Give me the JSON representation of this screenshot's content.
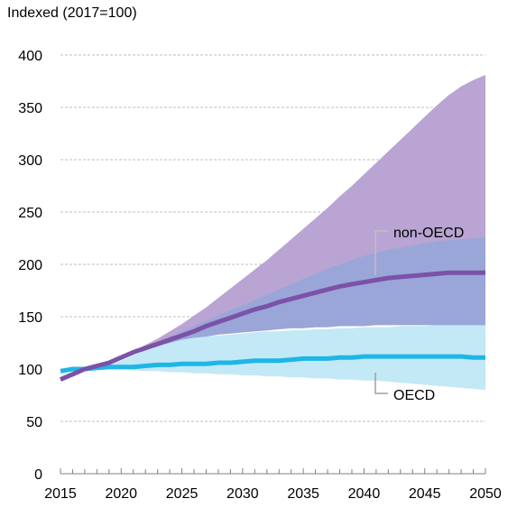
{
  "chart_data": {
    "type": "area",
    "title": "",
    "ylabel": "Indexed (2017=100)",
    "xlabel": "",
    "xlim": [
      2015,
      2050
    ],
    "ylim": [
      0,
      400
    ],
    "x_ticks": [
      "2015",
      "2020",
      "2025",
      "2030",
      "2035",
      "2040",
      "2045",
      "2050"
    ],
    "y_ticks": [
      "0",
      "50",
      "100",
      "150",
      "200",
      "250",
      "300",
      "350",
      "400"
    ],
    "grid": "horizontal-dashed",
    "colors": {
      "oecd_band": "#c3e8f6",
      "nonoecd_band": "#b9a4d3",
      "overlap": "#9aa6d8",
      "oecd_line": "#1eb6e6",
      "nonoecd_line": "#7b52a8",
      "grid": "#bfbfbf",
      "axis": "#808080"
    },
    "series": [
      {
        "name": "OECD",
        "x": [
          2015,
          2016,
          2017,
          2018,
          2019,
          2020,
          2021,
          2022,
          2023,
          2024,
          2025,
          2026,
          2027,
          2028,
          2029,
          2030,
          2031,
          2032,
          2033,
          2034,
          2035,
          2036,
          2037,
          2038,
          2039,
          2040,
          2041,
          2042,
          2043,
          2044,
          2045,
          2046,
          2047,
          2048,
          2049,
          2050
        ],
        "values": [
          98,
          100,
          100,
          101,
          102,
          102,
          102,
          103,
          104,
          104,
          105,
          105,
          105,
          106,
          106,
          107,
          108,
          108,
          108,
          109,
          110,
          110,
          110,
          111,
          111,
          112,
          112,
          112,
          112,
          112,
          112,
          112,
          112,
          112,
          111,
          111
        ],
        "band_upper": [
          98,
          100,
          100,
          102,
          104,
          108,
          113,
          118,
          122,
          125,
          128,
          130,
          131,
          132,
          133,
          134,
          135,
          136,
          136,
          137,
          137,
          138,
          138,
          139,
          139,
          140,
          140,
          140,
          141,
          141,
          141,
          142,
          142,
          142,
          142,
          142
        ],
        "band_lower": [
          98,
          100,
          100,
          100,
          100,
          100,
          99,
          98,
          98,
          97,
          97,
          96,
          96,
          95,
          95,
          94,
          94,
          93,
          93,
          92,
          92,
          91,
          91,
          90,
          90,
          89,
          89,
          88,
          87,
          86,
          85,
          84,
          83,
          82,
          81,
          80
        ]
      },
      {
        "name": "non-OECD",
        "x": [
          2015,
          2016,
          2017,
          2018,
          2019,
          2020,
          2021,
          2022,
          2023,
          2024,
          2025,
          2026,
          2027,
          2028,
          2029,
          2030,
          2031,
          2032,
          2033,
          2034,
          2035,
          2036,
          2037,
          2038,
          2039,
          2040,
          2041,
          2042,
          2043,
          2044,
          2045,
          2046,
          2047,
          2048,
          2049,
          2050
        ],
        "values": [
          90,
          95,
          100,
          103,
          106,
          111,
          116,
          120,
          124,
          128,
          132,
          136,
          141,
          145,
          149,
          153,
          157,
          160,
          164,
          167,
          170,
          173,
          176,
          179,
          181,
          183,
          185,
          187,
          188,
          189,
          190,
          191,
          192,
          192,
          192,
          192
        ],
        "band_upper": [
          90,
          95,
          100,
          103,
          106,
          111,
          117,
          123,
          129,
          136,
          143,
          151,
          159,
          168,
          177,
          186,
          195,
          204,
          214,
          224,
          234,
          244,
          254,
          265,
          275,
          286,
          297,
          308,
          319,
          330,
          341,
          352,
          362,
          370,
          376,
          381
        ],
        "band_lower": [
          90,
          95,
          100,
          103,
          106,
          110,
          114,
          118,
          122,
          125,
          128,
          130,
          131,
          133,
          134,
          135,
          136,
          137,
          138,
          139,
          139,
          140,
          140,
          141,
          141,
          141,
          142,
          142,
          142,
          142,
          142,
          142,
          142,
          142,
          142,
          142
        ],
        "upper_envelope": [
          90,
          95,
          100,
          103,
          106,
          111,
          116,
          121,
          126,
          131,
          136,
          141,
          146,
          151,
          156,
          161,
          166,
          171,
          176,
          181,
          186,
          191,
          196,
          200,
          204,
          208,
          211,
          214,
          216,
          218,
          220,
          222,
          223,
          224,
          225,
          226
        ]
      }
    ],
    "annotations": [
      {
        "text": "non-OECD",
        "series": "non-OECD"
      },
      {
        "text": "OECD",
        "series": "OECD"
      }
    ]
  }
}
